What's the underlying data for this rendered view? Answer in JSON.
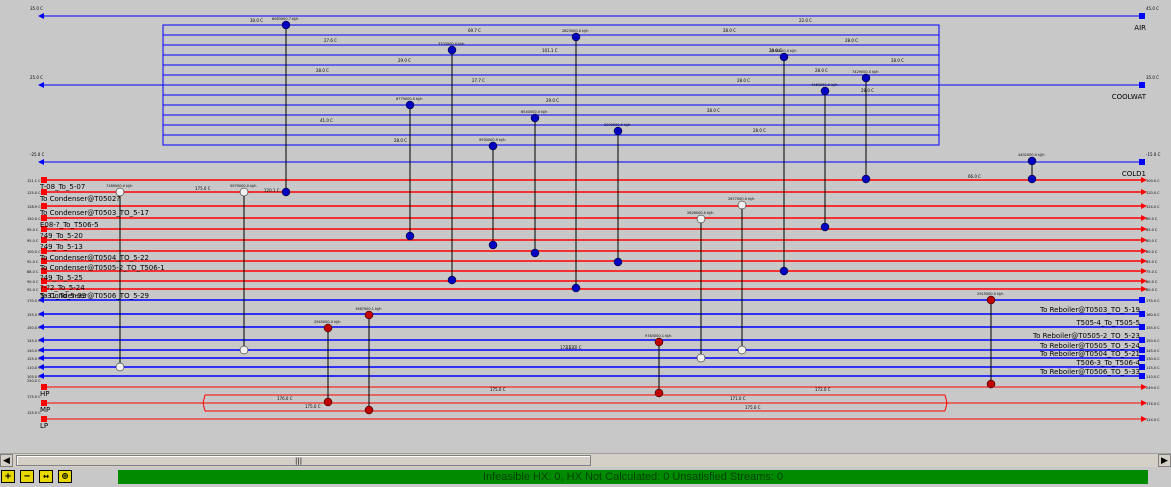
{
  "colors": {
    "utility": "#0000ff",
    "cold": "#0000e0",
    "hot": "#ff0000",
    "hotUtility": "#ff0000",
    "status": "#008a00"
  },
  "utilities": [
    {
      "name": "AIR",
      "in": "45.0 C",
      "out": "35.0 C"
    },
    {
      "name": "COOLWAT",
      "in": "35.0 C",
      "out": "25.0 C"
    },
    {
      "name": "COLD1",
      "in": "-15.0 C",
      "out": "-25.0 C"
    }
  ],
  "utility_temps": [
    "30.0 C",
    "28.0 C",
    "27.6 C",
    "28.0 C",
    "29.0 C",
    "28.0 C",
    "27.7 C",
    "28.0 C",
    "29.0 C",
    "28.0 C",
    "41.0 C",
    "28.0 C",
    "28.0 C",
    "22.0 C",
    "69.7 C",
    "28.0 C",
    "101.1 C",
    "28.0 C",
    "28.0 C",
    "28.0 C"
  ],
  "hot_streams": [
    {
      "name": "T-08_To_5-07",
      "in": "121.1 C",
      "out": "100.0 C"
    },
    {
      "name": "To Condenser@T0502?",
      "in": "125.0 C",
      "out": "120.0 C"
    },
    {
      "name": "To Condenser@T0503_TO_5-17",
      "in": "128.9 C",
      "out": "124.0 C"
    },
    {
      "name": "E08-?_To_T506-5",
      "in": "150.0 C",
      "out": "80.0 C"
    },
    {
      "name": "?49_To_5-20",
      "in": "95.0 C",
      "out": "85.0 C"
    },
    {
      "name": "?49_To_5-13",
      "in": "95.0 C",
      "out": "80.0 C"
    },
    {
      "name": "To Condenser@T0504_TO_5-22",
      "in": "100.0 C",
      "out": "80.0 C"
    },
    {
      "name": "To Condenser@T0505-2_TO_T506-1",
      "in": "92.0 C",
      "out": "85.0 C"
    },
    {
      "name": "?49_To_5-25",
      "in": "88.0 C",
      "out": "75.0 C"
    },
    {
      "name": "?-?2_To_5-24",
      "in": "90.0 C",
      "out": "80.0 C"
    },
    {
      "name": "To Condenser@T0506_TO_5-29",
      "in": "92.0 C",
      "out": "80.0 C"
    }
  ],
  "cold_streams": [
    {
      "name": "5-31_To_5-32",
      "in": "170.0 C",
      "out": "175.0 C"
    },
    {
      "name": "To Reboiler@T0503_TO_5-19",
      "in": "155.0 C",
      "out": "160.0 C"
    },
    {
      "name": "T505-4_To_T505-5",
      "in": "150.0 C",
      "out": "155.0 C"
    },
    {
      "name": "To Reboiler@T0505-2_TO_5-23",
      "in": "145.0 C",
      "out": "150.0 C"
    },
    {
      "name": "To Reboiler@T0505_TO_5-24",
      "in": "140.0 C",
      "out": "145.0 C"
    },
    {
      "name": "To Reboiler@T0504_TO_5-21",
      "in": "125.0 C",
      "out": "130.0 C"
    },
    {
      "name": "T506-3_To_T506-4",
      "in": "110.0 C",
      "out": "115.0 C"
    },
    {
      "name": "To Reboiler@T0506_TO_5-33",
      "in": "105.0 C",
      "out": "110.0 C"
    }
  ],
  "hot_utilities": [
    {
      "name": "HP",
      "in": "250.0 C",
      "out": "249.0 C"
    },
    {
      "name": "MP",
      "in": "175.0 C",
      "out": "174.0 C"
    },
    {
      "name": "LP",
      "in": "125.0 C",
      "out": "124.0 C"
    }
  ],
  "hot_utility_temps": [
    "175.0 C",
    "172.0 C",
    "176.0 C",
    "175.0 C",
    "171.0 C",
    "175.0 C",
    "172.5 C"
  ],
  "exchanger_duties": [
    "7189000.0 kJ/h",
    "5979000.0 kJ/h",
    "6083000.7 kJ/h",
    "2945000.0 kJ/h",
    "1987000.1 kJ/h",
    "6779000.0 kJ/h",
    "3703000.0 kJ/h",
    "9930000.9 kJ/h",
    "6540000.0 kJ/h",
    "2823000.0 kJ/h",
    "2000000.9 kJ/h",
    "9783000.1 kJ/h",
    "2826000.0 kJ/h",
    "2677000.0 kJ/h",
    "2298000.0 kJ/h",
    "4460000.0 kJ/h",
    "7429000.0 kJ/h",
    "2915000.0 kJ/h",
    "4402000.0 kJ/h"
  ],
  "misc_temps": [
    "175.0 C",
    "120.1 C",
    "66.0 C",
    "113.0 C"
  ],
  "scrollbar": {
    "left_arrow": "◀",
    "right_arrow": "▶",
    "grip": "|||"
  },
  "toolbar": {
    "zoom_in": "+",
    "zoom_out": "−",
    "fit": "↔",
    "center": "⊕"
  },
  "status_text": "Infeasible HX: 0, HX Not Calculated: 0      Unsatisfied Streams: 0"
}
